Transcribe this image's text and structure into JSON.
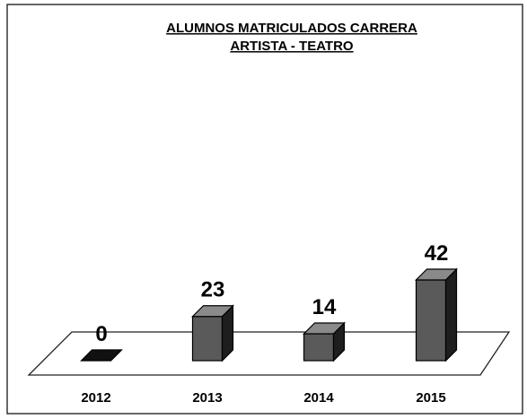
{
  "chart_data": {
    "type": "bar3d",
    "title": [
      "ALUMNOS MATRICULADOS CARRERA",
      "ARTISTA - TEATRO"
    ],
    "categories": [
      "2012",
      "2013",
      "2014",
      "2015"
    ],
    "values": [
      0,
      23,
      14,
      42
    ],
    "color": "#5a5a5a"
  }
}
